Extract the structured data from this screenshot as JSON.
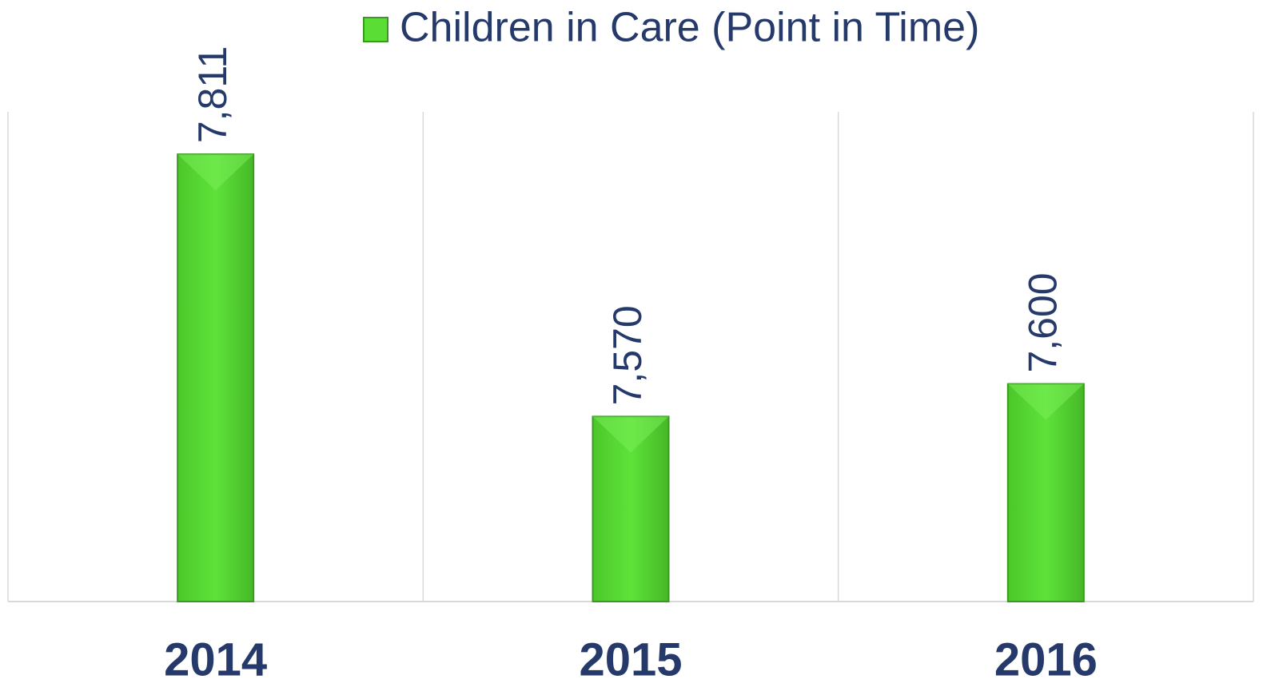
{
  "chart_data": {
    "type": "bar",
    "categories": [
      "2014",
      "2015",
      "2016"
    ],
    "series": [
      {
        "name": "Children in Care (Point in Time)",
        "color": "#5ade35",
        "values": [
          7811,
          7570,
          7600
        ],
        "value_labels": [
          "7,811",
          "7,570",
          "7,600"
        ]
      }
    ],
    "ylim": [
      7400,
      7850
    ],
    "legend": "top"
  }
}
